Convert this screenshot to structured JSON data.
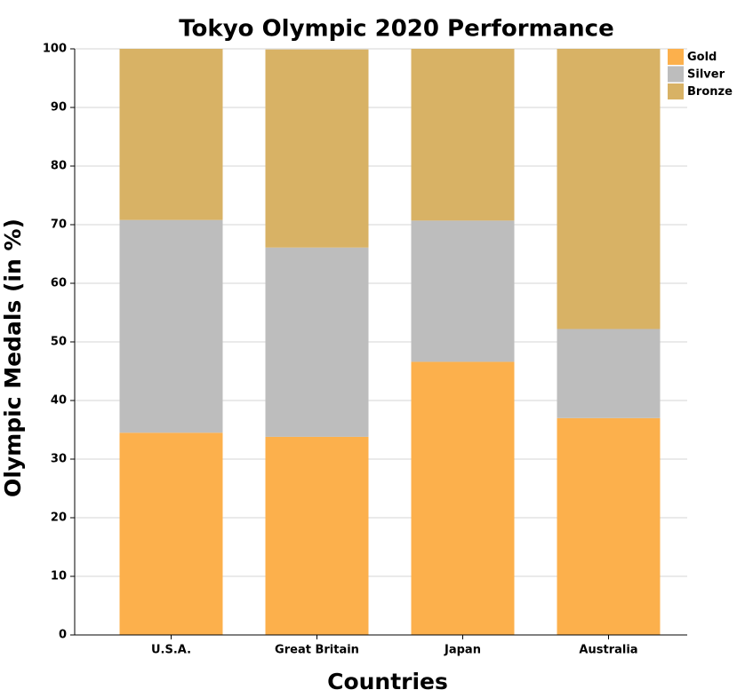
{
  "chart_data": {
    "type": "stacked_bar",
    "title": "Tokyo Olympic 2020 Performance",
    "x_label": "Countries",
    "y_label": "Olympic Medals (in %)",
    "categories": [
      "U.S.A.",
      "Great Britain",
      "Japan",
      "Australia"
    ],
    "series": [
      {
        "name": "Gold",
        "color": "#fcb04c",
        "values": [
          34.5,
          33.8,
          46.6,
          37.0
        ]
      },
      {
        "name": "Silver",
        "color": "#bdbdbd",
        "values": [
          36.3,
          32.3,
          24.1,
          15.2
        ]
      },
      {
        "name": "Bronze",
        "color": "#d8b265",
        "values": [
          29.2,
          33.8,
          29.3,
          47.8
        ]
      }
    ],
    "ylim": [
      0,
      100
    ],
    "yticks": [
      0,
      10,
      20,
      30,
      40,
      50,
      60,
      70,
      80,
      90,
      100
    ],
    "grid": true,
    "legend": "upper right"
  }
}
